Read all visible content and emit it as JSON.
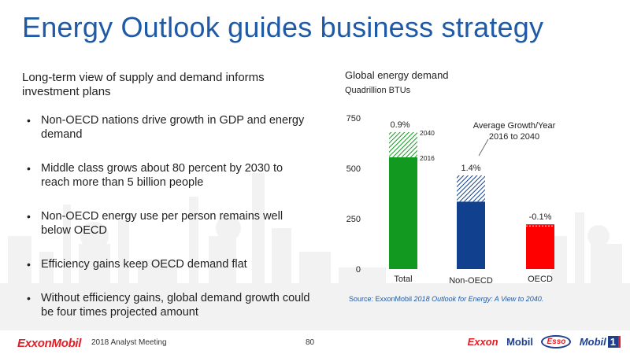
{
  "slide": {
    "title": "Energy Outlook guides business strategy",
    "subtitle": "Long-term view of supply and demand informs investment plans",
    "bullets": [
      "Non-OECD nations drive growth in GDP and energy demand",
      "Middle class grows about 80 percent by 2030 to reach more than 5 billion people",
      "Non-OECD energy use per person remains well below OECD",
      "Efficiency gains keep OECD demand flat",
      "Without efficiency gains, global demand growth could be four times projected amount"
    ],
    "bullet_glyph": "•"
  },
  "chart_data": {
    "type": "bar",
    "title": "Global energy demand",
    "subtitle": "Quadrillion BTUs",
    "categories": [
      "Total",
      "Non-OECD",
      "OECD"
    ],
    "series": [
      {
        "name": "2016",
        "values": [
          555,
          335,
          222
        ]
      },
      {
        "name": "2040",
        "values": [
          680,
          465,
          218
        ]
      }
    ],
    "growth_labels": [
      "0.9%",
      "1.4%",
      "-0.1%"
    ],
    "bar_colors": [
      "#119a1f",
      "#10408e",
      "#ff0000"
    ],
    "year_labels": [
      "2040",
      "2016"
    ],
    "annotation": "Average Growth/Year\n2016 to 2040",
    "yticks": [
      0,
      250,
      500,
      750
    ],
    "ylim": [
      0,
      750
    ],
    "xlabel": "",
    "ylabel": "",
    "grid": false,
    "legend": "none"
  },
  "source": {
    "prefix": "Source: ExxonMobil ",
    "italic": "2018 Outlook for Energy: A View to 2040."
  },
  "footer": {
    "logo_text": "ExxonMobil",
    "meeting": "2018 Analyst Meeting",
    "page_number": "80",
    "brands": {
      "exxon": "Exxon",
      "mobil": "Mobil",
      "esso": "Esso",
      "mobil1": "Mobil",
      "mobil1_num": "1"
    }
  }
}
